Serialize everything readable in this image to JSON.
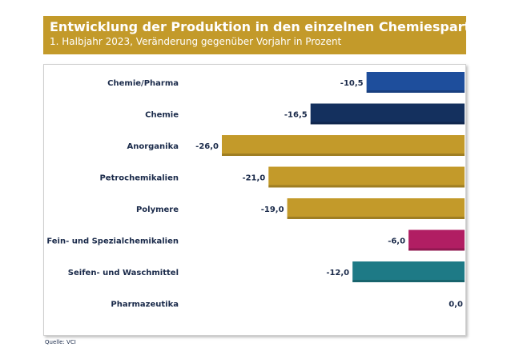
{
  "header": {
    "title": "Entwicklung der Produktion in den einzelnen Chemiesparten",
    "subtitle": "1. Halbjahr 2023, Veränderung gegenüber Vorjahr in Prozent"
  },
  "source": "Quelle: VCI",
  "colors": {
    "header_bg": "#c39a2a",
    "label_text": "#1a2a4a"
  },
  "chart_data": {
    "type": "bar",
    "orientation": "horizontal",
    "title": "Entwicklung der Produktion in den einzelnen Chemiesparten",
    "subtitle": "1. Halbjahr 2023, Veränderung gegenüber Vorjahr in Prozent",
    "categories": [
      "Chemie/Pharma",
      "Chemie",
      "Anorganika",
      "Petrochemikalien",
      "Polymere",
      "Fein- und Spezialchemikalien",
      "Seifen- und Waschmittel",
      "Pharmazeutika"
    ],
    "values": [
      -10.5,
      -16.5,
      -26.0,
      -21.0,
      -19.0,
      -6.0,
      -12.0,
      0.0
    ],
    "value_labels": [
      "-10,5",
      "-16,5",
      "-26,0",
      "-21,0",
      "-19,0",
      "-6,0",
      "-12,0",
      "0,0"
    ],
    "bar_colors": [
      "#1e4e9c",
      "#14305e",
      "#c39a2a",
      "#c39a2a",
      "#c39a2a",
      "#b11e63",
      "#1e7a86",
      "#c39a2a"
    ],
    "xlim": [
      -26,
      0
    ],
    "grid": false,
    "legend": "none"
  }
}
